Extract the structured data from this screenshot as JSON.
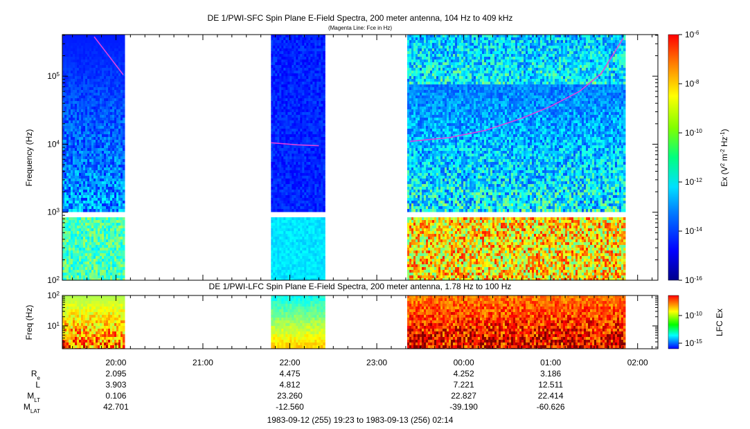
{
  "chart_data": [
    {
      "type": "heatmap",
      "title": "DE 1/PWI-SFC  Spin Plane E-Field Spectra, 200 meter antenna, 104 Hz to 409 kHz",
      "subtitle": "(Magenta Line: Fce in Hz)",
      "ylabel": "Frequency (Hz)",
      "y_scale": "log",
      "ylim": [
        100,
        409000
      ],
      "y_ticks": [
        {
          "value": 100,
          "base": "10",
          "exp": "2"
        },
        {
          "value": 1000,
          "base": "10",
          "exp": "3"
        },
        {
          "value": 10000,
          "base": "10",
          "exp": "4"
        },
        {
          "value": 100000,
          "base": "10",
          "exp": "5"
        }
      ],
      "data_intervals": [
        [
          "19:23",
          "20:05"
        ],
        [
          "21:47",
          "22:23"
        ],
        [
          "23:21",
          "01:51"
        ]
      ],
      "fce_line": {
        "name": "Fce in Hz",
        "segments": [
          [
            [
              "19:45",
              380000
            ],
            [
              "19:55",
              200000
            ],
            [
              "20:05",
              105000
            ]
          ],
          [
            [
              "21:47",
              10500
            ],
            [
              "22:05",
              9800
            ],
            [
              "22:20",
              9500
            ]
          ],
          [
            [
              "23:23",
              11000
            ],
            [
              "23:50",
              12500
            ],
            [
              "00:15",
              16000
            ],
            [
              "00:40",
              24000
            ],
            [
              "01:00",
              36000
            ],
            [
              "01:20",
              60000
            ],
            [
              "01:35",
              110000
            ],
            [
              "01:50",
              360000
            ]
          ]
        ]
      },
      "colorbar": {
        "label_main": "Ex (V",
        "label_sup1": "2",
        "label_mid1": " m",
        "label_sup2": "-2",
        "label_mid2": " Hz",
        "label_sup3": "-1",
        "label_end": ")",
        "range": [
          1e-16,
          1e-06
        ],
        "scale": "log",
        "ticks": [
          {
            "base": "10",
            "exp": "-6"
          },
          {
            "base": "10",
            "exp": "-8"
          },
          {
            "base": "10",
            "exp": "-10"
          },
          {
            "base": "10",
            "exp": "-12"
          },
          {
            "base": "10",
            "exp": "-14"
          },
          {
            "base": "10",
            "exp": "-16"
          }
        ]
      }
    },
    {
      "type": "heatmap",
      "title": "DE 1/PWI-LFC  Spin Plane E-Field Spectra, 200 meter antenna, 1.78 Hz to 100 Hz",
      "ylabel": "Freq (Hz)",
      "y_scale": "log",
      "ylim": [
        1.78,
        100
      ],
      "y_ticks": [
        {
          "value": 10,
          "base": "10",
          "exp": "1"
        },
        {
          "value": 100,
          "base": "10",
          "exp": "2"
        }
      ],
      "data_intervals": [
        [
          "19:23",
          "20:05"
        ],
        [
          "21:47",
          "22:23"
        ],
        [
          "23:21",
          "01:51"
        ]
      ],
      "colorbar": {
        "label": "LFC Ex",
        "scale": "log",
        "ticks": [
          {
            "base": "10",
            "exp": "-10"
          },
          {
            "base": "10",
            "exp": "-15"
          }
        ]
      }
    }
  ],
  "x_axis": {
    "range": [
      "19:23",
      "02:14"
    ],
    "ticks": [
      "20:00",
      "21:00",
      "22:00",
      "23:00",
      "00:00",
      "01:00",
      "02:00"
    ]
  },
  "ephemeris": {
    "rows": [
      {
        "label": "R",
        "sub": "e",
        "values": [
          "2.095",
          "4.475",
          "4.252",
          "3.186"
        ]
      },
      {
        "label": "L",
        "sub": "",
        "values": [
          "3.903",
          "4.812",
          "7.221",
          "12.511"
        ]
      },
      {
        "label": "M",
        "sub": "LT",
        "values": [
          "0.106",
          "23.260",
          "22.827",
          "22.414"
        ]
      },
      {
        "label": "M",
        "sub": "LAT",
        "values": [
          "42.701",
          "-12.560",
          "-39.190",
          "-60.626"
        ]
      }
    ],
    "time_range_label": "1983-09-12 (255) 19:23 to 1983-09-13 (256) 02:14"
  }
}
